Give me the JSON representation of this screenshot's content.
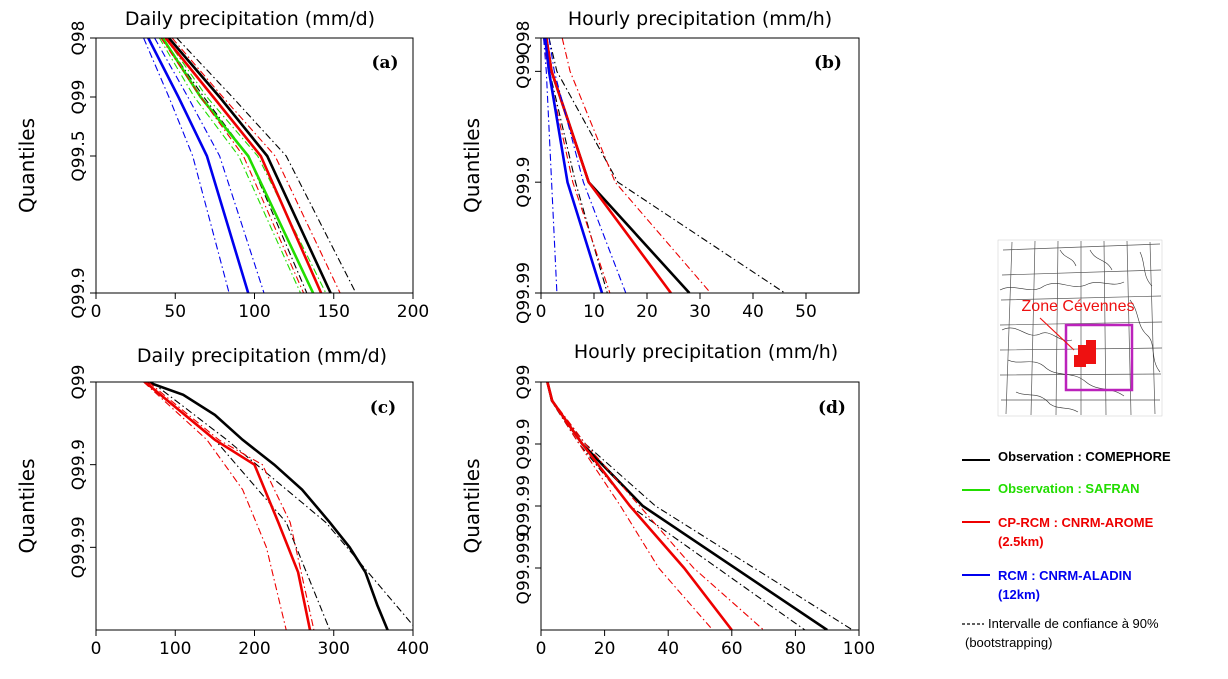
{
  "colors": {
    "observation_comephore": "#000000",
    "observation_safran": "#22dd00",
    "cp_rcm_arome": "#ee0000",
    "rcm_aladin": "#0000ee",
    "zone_box": "#bb22bb",
    "zone_marker": "#ee1111"
  },
  "chart_data": [
    {
      "type": "line",
      "panel_label": "(a)",
      "title": "Daily precipitation (mm/d)",
      "ylabel": "Quantiles",
      "xlim": [
        0,
        200
      ],
      "x_ticks": [
        0,
        50,
        100,
        150,
        200
      ],
      "y_ticks": [
        "Q98",
        "Q99",
        "Q99.5",
        "Q99.9"
      ],
      "series": [
        {
          "name": "Observation : COMEPHORE",
          "style": "solid",
          "color_key": "observation_comephore",
          "x": [
            46,
            78,
            108,
            148
          ],
          "y": [
            "Q98",
            "Q99",
            "Q99.5",
            "Q99.9"
          ]
        },
        {
          "name": "Observation : COMEPHORE",
          "style": "dashdot",
          "color_key": "observation_comephore",
          "x": [
            42,
            68,
            96,
            133
          ],
          "y": [
            "Q98",
            "Q99",
            "Q99.5",
            "Q99.9"
          ]
        },
        {
          "name": "Observation : COMEPHORE",
          "style": "dashdot",
          "color_key": "observation_comephore",
          "x": [
            51,
            86,
            120,
            164
          ],
          "y": [
            "Q98",
            "Q99",
            "Q99.5",
            "Q99.9"
          ]
        },
        {
          "name": "Observation : SAFRAN",
          "style": "solid",
          "color_key": "observation_safran",
          "x": [
            42,
            66,
            96,
            137
          ],
          "y": [
            "Q98",
            "Q99",
            "Q99.5",
            "Q99.9"
          ]
        },
        {
          "name": "Observation : SAFRAN",
          "style": "dashdot",
          "color_key": "observation_safran",
          "x": [
            40,
            62,
            90,
            129
          ],
          "y": [
            "Q98",
            "Q99",
            "Q99.5",
            "Q99.9"
          ]
        },
        {
          "name": "Observation : SAFRAN",
          "style": "dashdot",
          "color_key": "observation_safran",
          "x": [
            44,
            70,
            102,
            145
          ],
          "y": [
            "Q98",
            "Q99",
            "Q99.5",
            "Q99.9"
          ]
        },
        {
          "name": "CP-RCM : CNRM-AROME (2.5km)",
          "style": "solid",
          "color_key": "cp_rcm_arome",
          "x": [
            44,
            74,
            104,
            142
          ],
          "y": [
            "Q98",
            "Q99",
            "Q99.5",
            "Q99.9"
          ]
        },
        {
          "name": "CP-RCM : CNRM-AROME (2.5km)",
          "style": "dashdot",
          "color_key": "cp_rcm_arome",
          "x": [
            41,
            66,
            93,
            131
          ],
          "y": [
            "Q98",
            "Q99",
            "Q99.5",
            "Q99.9"
          ]
        },
        {
          "name": "CP-RCM : CNRM-AROME (2.5km)",
          "style": "dashdot",
          "color_key": "cp_rcm_arome",
          "x": [
            48,
            80,
            113,
            154
          ],
          "y": [
            "Q98",
            "Q99",
            "Q99.5",
            "Q99.9"
          ]
        },
        {
          "name": "RCM : CNRM-ALADIN (12km)",
          "style": "solid",
          "color_key": "rcm_aladin",
          "x": [
            33,
            52,
            70,
            96
          ],
          "y": [
            "Q98",
            "Q99",
            "Q99.5",
            "Q99.9"
          ]
        },
        {
          "name": "RCM : CNRM-ALADIN (12km)",
          "style": "dashdot",
          "color_key": "rcm_aladin",
          "x": [
            30,
            46,
            61,
            84
          ],
          "y": [
            "Q98",
            "Q99",
            "Q99.5",
            "Q99.9"
          ]
        },
        {
          "name": "RCM : CNRM-ALADIN (12km)",
          "style": "dashdot",
          "color_key": "rcm_aladin",
          "x": [
            37,
            58,
            78,
            106
          ],
          "y": [
            "Q98",
            "Q99",
            "Q99.5",
            "Q99.9"
          ]
        }
      ]
    },
    {
      "type": "line",
      "panel_label": "(b)",
      "title": "Hourly precipitation (mm/h)",
      "ylabel": "Quantiles",
      "xlim": [
        0,
        60
      ],
      "x_ticks": [
        0,
        10,
        20,
        30,
        40,
        50
      ],
      "y_ticks": [
        "Q98",
        "Q99",
        "Q99.9",
        "Q99.99"
      ],
      "series": [
        {
          "name": "Observation : COMEPHORE",
          "style": "solid",
          "color_key": "observation_comephore",
          "x": [
            1.0,
            2.0,
            9.0,
            28.0
          ],
          "y": [
            "Q98",
            "Q99",
            "Q99.9",
            "Q99.99"
          ]
        },
        {
          "name": "Observation : COMEPHORE",
          "style": "dashdot",
          "color_key": "observation_comephore",
          "x": [
            0.8,
            1.6,
            6.5,
            12.5
          ],
          "y": [
            "Q98",
            "Q99",
            "Q99.9",
            "Q99.99"
          ]
        },
        {
          "name": "Observation : COMEPHORE",
          "style": "dashdot",
          "color_key": "observation_comephore",
          "x": [
            1.5,
            3.0,
            14.5,
            46.0
          ],
          "y": [
            "Q98",
            "Q99",
            "Q99.9",
            "Q99.99"
          ]
        },
        {
          "name": "Observation : SAFRAN",
          "style": "solid",
          "color_key": "observation_safran",
          "x": [],
          "y": []
        },
        {
          "name": "CP-RCM : CNRM-AROME (2.5km)",
          "style": "solid",
          "color_key": "cp_rcm_arome",
          "x": [
            1.0,
            2.0,
            9.0,
            24.5
          ],
          "y": [
            "Q98",
            "Q99",
            "Q99.9",
            "Q99.99"
          ]
        },
        {
          "name": "CP-RCM : CNRM-AROME (2.5km)",
          "style": "dashdot",
          "color_key": "cp_rcm_arome",
          "x": [
            0.5,
            1.4,
            6.0,
            13.0
          ],
          "y": [
            "Q98",
            "Q99",
            "Q99.9",
            "Q99.99"
          ]
        },
        {
          "name": "CP-RCM : CNRM-AROME (2.5km)",
          "style": "dashdot",
          "color_key": "cp_rcm_arome",
          "x": [
            4.0,
            5.5,
            14.0,
            32.0
          ],
          "y": [
            "Q98",
            "Q99",
            "Q99.9",
            "Q99.99"
          ]
        },
        {
          "name": "RCM : CNRM-ALADIN (12km)",
          "style": "solid",
          "color_key": "rcm_aladin",
          "x": [
            0.8,
            1.5,
            5.0,
            11.5
          ],
          "y": [
            "Q98",
            "Q99",
            "Q99.9",
            "Q99.99"
          ]
        },
        {
          "name": "RCM : CNRM-ALADIN (12km)",
          "style": "dashdot",
          "color_key": "rcm_aladin",
          "x": [
            0.5,
            1.0,
            2.0,
            3.0
          ],
          "y": [
            "Q98",
            "Q99",
            "Q99.9",
            "Q99.99"
          ]
        },
        {
          "name": "RCM : CNRM-ALADIN (12km)",
          "style": "dashdot",
          "color_key": "rcm_aladin",
          "x": [
            1.5,
            2.5,
            8.0,
            16.0
          ],
          "y": [
            "Q98",
            "Q99",
            "Q99.9",
            "Q99.99"
          ]
        }
      ]
    },
    {
      "type": "line",
      "panel_label": "(c)",
      "title": "Daily precipitation (mm/d)",
      "ylabel": "Quantiles",
      "xlim": [
        0,
        400
      ],
      "x_ticks": [
        0,
        100,
        200,
        300,
        400
      ],
      "y_ticks": [
        "Q99",
        "Q99.9",
        "Q99.99"
      ],
      "series": [
        {
          "name": "Observation : COMEPHORE",
          "style": "solid",
          "color_key": "observation_comephore",
          "x": [
            65,
            110,
            150,
            185,
            225,
            260,
            295,
            320,
            340,
            355,
            368
          ],
          "y": [
            "Q99",
            "Q99.3",
            "Q99.6",
            "Q99.8",
            "Q99.9",
            "Q99.95",
            "Q99.98",
            "Q99.99",
            "Q99.995",
            "Q99.998",
            "Q99.999"
          ]
        },
        {
          "name": "Observation : COMEPHORE",
          "style": "dashdot",
          "color_key": "observation_comephore",
          "x": [
            70,
            165,
            290,
            405
          ],
          "y": [
            "Q99",
            "Q99.8",
            "Q99.98",
            "Q99.999"
          ]
        },
        {
          "name": "Observation : COMEPHORE",
          "style": "dashdot",
          "color_key": "observation_comephore",
          "x": [
            60,
            150,
            240,
            295
          ],
          "y": [
            "Q99",
            "Q99.8",
            "Q99.98",
            "Q99.999"
          ]
        },
        {
          "name": "CP-RCM : CNRM-AROME (2.5km)",
          "style": "solid",
          "color_key": "cp_rcm_arome",
          "x": [
            62,
            150,
            200,
            230,
            255,
            270
          ],
          "y": [
            "Q99",
            "Q99.8",
            "Q99.9",
            "Q99.98",
            "Q99.995",
            "Q99.999"
          ]
        },
        {
          "name": "CP-RCM : CNRM-AROME (2.5km)",
          "style": "dashdot",
          "color_key": "cp_rcm_arome",
          "x": [
            60,
            140,
            185,
            215,
            240
          ],
          "y": [
            "Q99",
            "Q99.8",
            "Q99.95",
            "Q99.99",
            "Q99.999"
          ]
        },
        {
          "name": "CP-RCM : CNRM-AROME (2.5km)",
          "style": "dashdot",
          "color_key": "cp_rcm_arome",
          "x": [
            66,
            155,
            210,
            245,
            275
          ],
          "y": [
            "Q99",
            "Q99.8",
            "Q99.9",
            "Q99.98",
            "Q99.999"
          ]
        }
      ]
    },
    {
      "type": "line",
      "panel_label": "(d)",
      "title": "Hourly precipitation (mm/h)",
      "ylabel": "Quantiles",
      "xlim": [
        0,
        100
      ],
      "x_ticks": [
        0,
        20,
        40,
        60,
        80,
        100
      ],
      "y_ticks": [
        "Q99",
        "Q99.9",
        "Q99.99",
        "Q99.999"
      ],
      "series": [
        {
          "name": "Observation : COMEPHORE",
          "style": "solid",
          "color_key": "observation_comephore",
          "x": [
            2,
            3.5,
            13,
            32,
            90
          ],
          "y": [
            "Q99",
            "Q99.5",
            "Q99.9",
            "Q99.99",
            "Q99.9999"
          ]
        },
        {
          "name": "Observation : COMEPHORE",
          "style": "dashdot",
          "color_key": "observation_comephore",
          "x": [
            2,
            3.5,
            14,
            36,
            98
          ],
          "y": [
            "Q99",
            "Q99.5",
            "Q99.9",
            "Q99.99",
            "Q99.9999"
          ]
        },
        {
          "name": "Observation : COMEPHORE",
          "style": "dashdot",
          "color_key": "observation_comephore",
          "x": [
            2,
            3.2,
            12,
            28,
            83
          ],
          "y": [
            "Q99",
            "Q99.5",
            "Q99.9",
            "Q99.99",
            "Q99.9999"
          ]
        },
        {
          "name": "CP-RCM : CNRM-AROME (2.5km)",
          "style": "solid",
          "color_key": "cp_rcm_arome",
          "x": [
            2,
            3.5,
            13,
            28,
            45,
            60
          ],
          "y": [
            "Q99",
            "Q99.5",
            "Q99.9",
            "Q99.99",
            "Q99.999",
            "Q99.9999"
          ]
        },
        {
          "name": "CP-RCM : CNRM-AROME (2.5km)",
          "style": "dashdot",
          "color_key": "cp_rcm_arome",
          "x": [
            2,
            3.3,
            12,
            25,
            37,
            54
          ],
          "y": [
            "Q99",
            "Q99.5",
            "Q99.9",
            "Q99.99",
            "Q99.999",
            "Q99.9999"
          ]
        },
        {
          "name": "CP-RCM : CNRM-AROME (2.5km)",
          "style": "dashdot",
          "color_key": "cp_rcm_arome",
          "x": [
            2,
            3.7,
            14,
            31,
            48,
            70
          ],
          "y": [
            "Q99",
            "Q99.5",
            "Q99.9",
            "Q99.99",
            "Q99.999",
            "Q99.9999"
          ]
        }
      ]
    }
  ],
  "map": {
    "label": "Zone Cévennes"
  },
  "legend": {
    "entries": [
      {
        "key": "comephore",
        "label": "Observation : COMEPHORE",
        "color_key": "observation_comephore"
      },
      {
        "key": "safran",
        "label": "Observation : SAFRAN",
        "color_key": "observation_safran"
      },
      {
        "key": "arome",
        "label": "CP-RCM : CNRM-AROME",
        "label2": "(2.5km)",
        "color_key": "cp_rcm_arome"
      },
      {
        "key": "aladin",
        "label": "RCM : CNRM-ALADIN",
        "label2": "(12km)",
        "color_key": "rcm_aladin"
      }
    ],
    "ci_label": "Intervalle de confiance à 90%",
    "ci_label2": "(bootstrapping)"
  }
}
